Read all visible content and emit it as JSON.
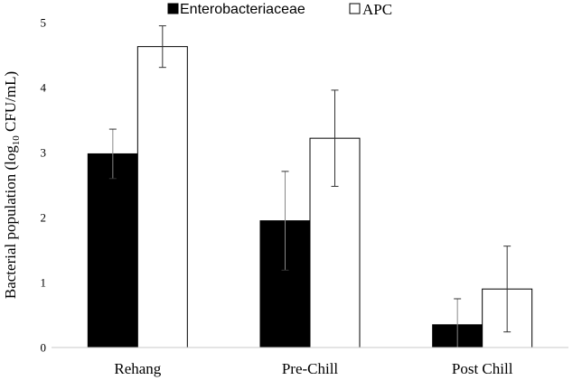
{
  "chart_data": {
    "type": "bar",
    "categories": [
      "Rehang",
      "Pre-Chill",
      "Post Chill"
    ],
    "series": [
      {
        "name": "Enterobacteriaceae",
        "color": "#000000",
        "values": [
          2.98,
          1.95,
          0.35
        ],
        "errors": [
          0.38,
          0.76,
          0.4
        ]
      },
      {
        "name": "APC",
        "color": "#ffffff",
        "values": [
          4.63,
          3.22,
          0.9
        ],
        "errors": [
          0.32,
          0.74,
          0.66
        ]
      }
    ],
    "ylabel_main": "Bacterial population (log",
    "ylabel_sub": "10",
    "ylabel_tail": " CFU/mL)",
    "ylim": [
      0,
      5
    ],
    "yticks": [
      "0",
      "1",
      "2",
      "3",
      "4",
      "5"
    ],
    "grid": false,
    "legend_position": "top"
  }
}
